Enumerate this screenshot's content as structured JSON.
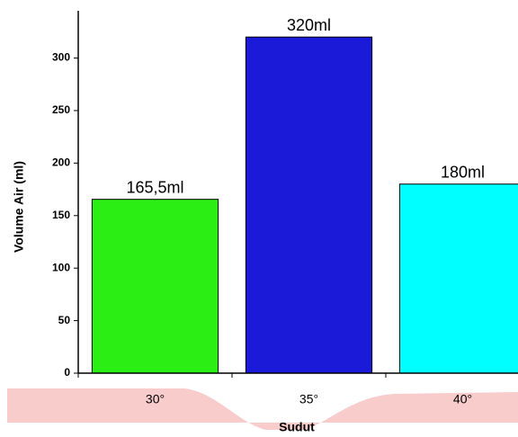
{
  "chart_data": {
    "type": "bar",
    "x_label": "Sudut",
    "y_label": "Volume Air (ml)",
    "categories": [
      "30°",
      "35°",
      "40°"
    ],
    "values": [
      165.5,
      320,
      180
    ],
    "value_labels": [
      "165,5ml",
      "320ml",
      "180ml"
    ],
    "colors": [
      "#2aee14",
      "#1a1ad8",
      "#00ffff"
    ],
    "ylim": [
      0,
      345
    ],
    "yticks": [
      0,
      50,
      100,
      150,
      200,
      250,
      300
    ]
  }
}
